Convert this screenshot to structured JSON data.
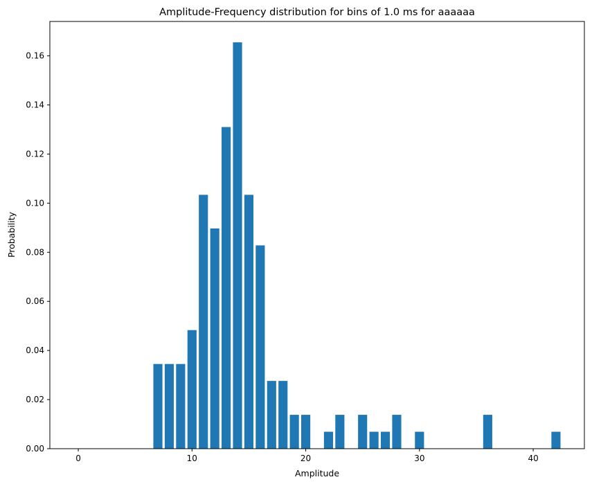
{
  "chart_data": {
    "type": "bar",
    "title": "Amplitude-Frequency distribution for bins of 1.0 ms for aaaaaa",
    "xlabel": "Amplitude",
    "ylabel": "Probability",
    "xlim": [
      -2.5,
      44.5
    ],
    "ylim": [
      0,
      0.174
    ],
    "xticks": [
      0,
      10,
      20,
      30,
      40
    ],
    "yticks": [
      0.0,
      0.02,
      0.04,
      0.06,
      0.08,
      0.1,
      0.12,
      0.14,
      0.16
    ],
    "bar_color": "#1f77b4",
    "bar_width": 0.8,
    "grid": false,
    "legend": "none",
    "x": [
      7,
      8,
      9,
      10,
      11,
      12,
      13,
      14,
      15,
      16,
      17,
      18,
      19,
      20,
      22,
      23,
      25,
      26,
      27,
      28,
      30,
      36,
      42
    ],
    "values": [
      0.0345,
      0.0345,
      0.0345,
      0.0483,
      0.1034,
      0.0897,
      0.131,
      0.1655,
      0.1034,
      0.0828,
      0.0276,
      0.0276,
      0.0138,
      0.0138,
      0.0069,
      0.0138,
      0.0138,
      0.0069,
      0.0069,
      0.0138,
      0.0069,
      0.0138,
      0.0069
    ]
  }
}
